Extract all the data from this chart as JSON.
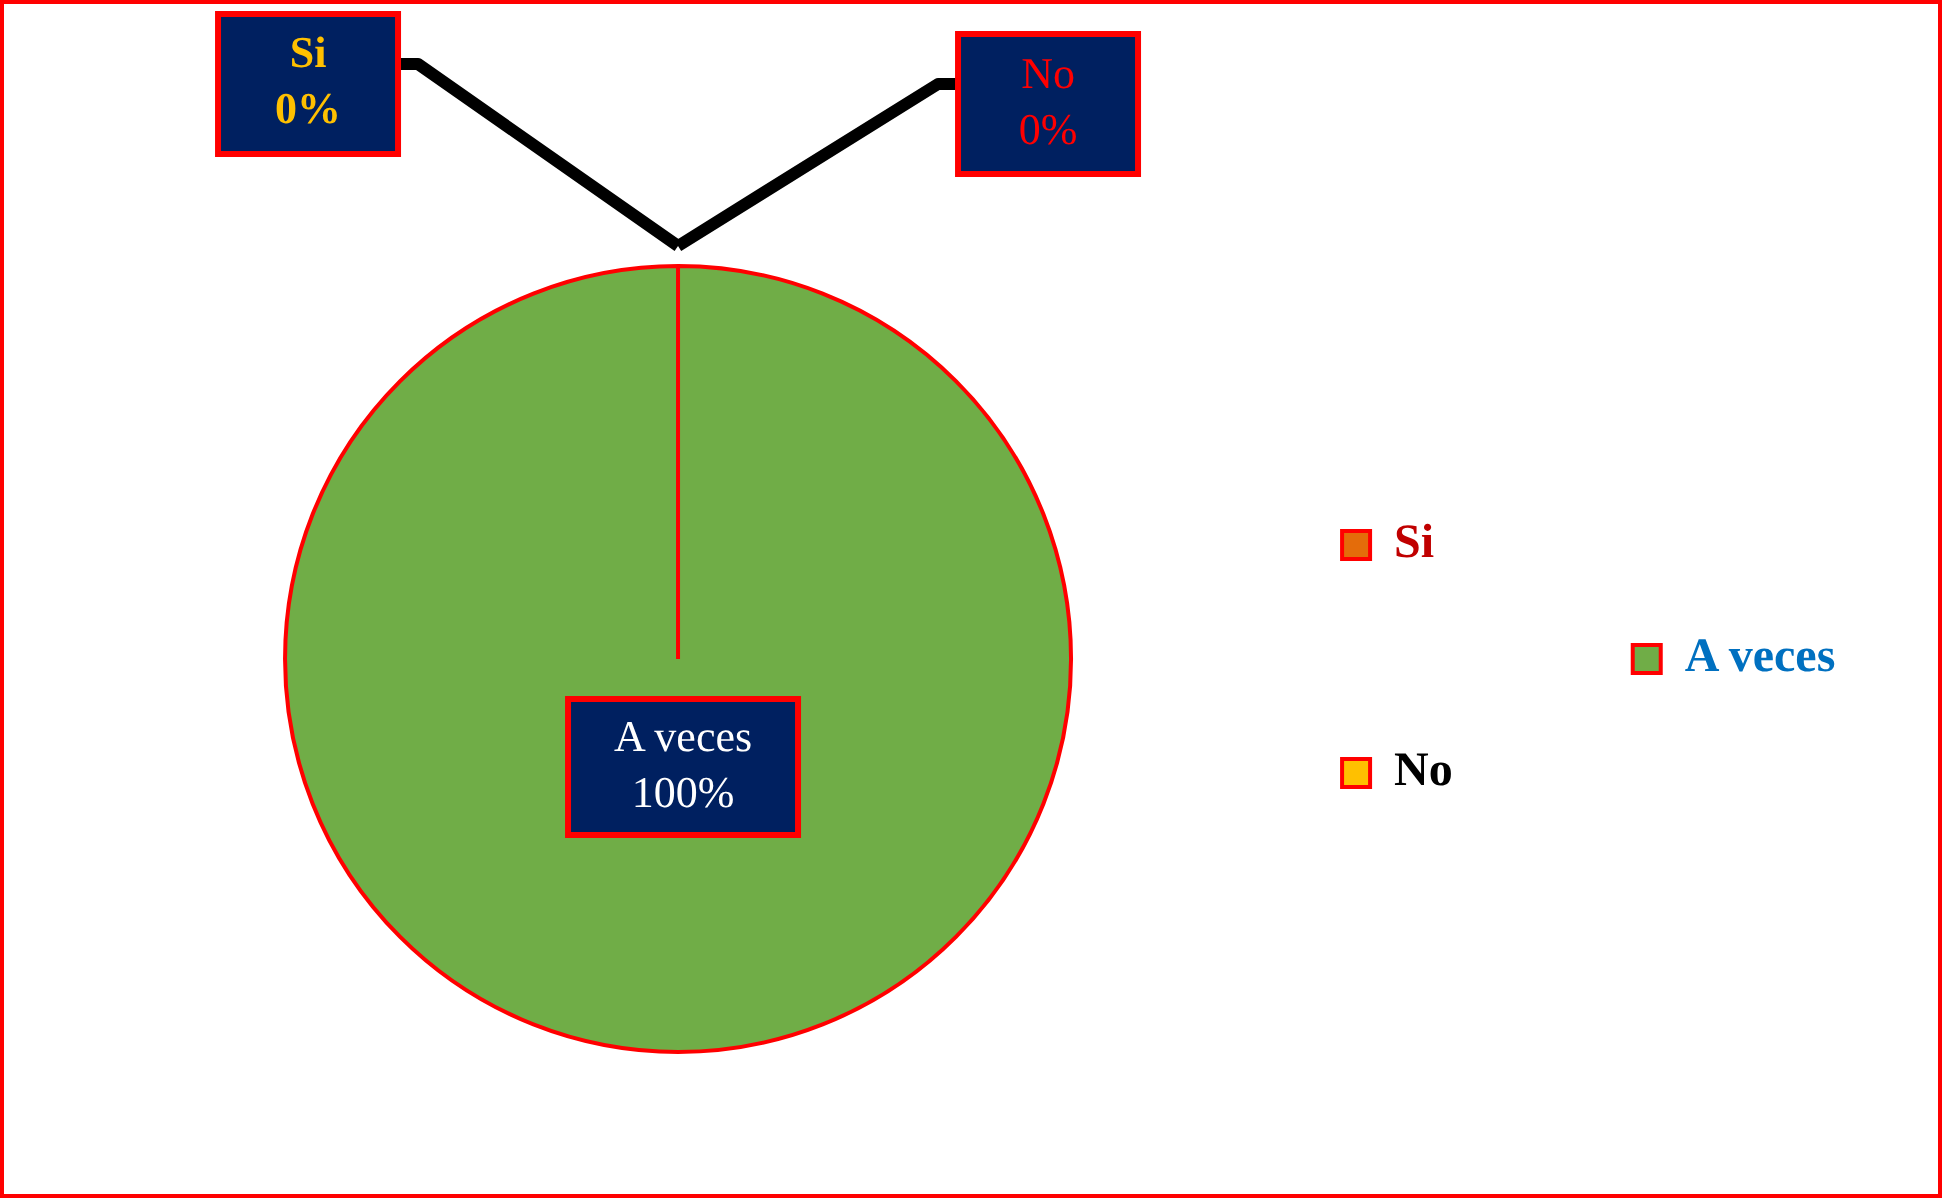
{
  "chart_data": {
    "type": "pie",
    "categories": [
      "Si",
      "No",
      "A veces"
    ],
    "values": [
      0,
      0,
      100
    ],
    "colors": [
      "#e46c0a",
      "#ffc000",
      "#70ad47"
    ],
    "value_labels": [
      "0%",
      "0%",
      "100%"
    ],
    "legend": "right"
  }
}
